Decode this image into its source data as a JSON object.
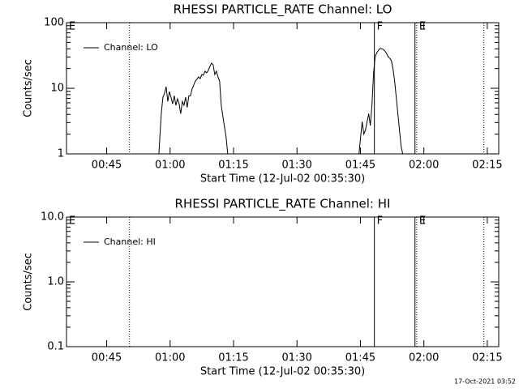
{
  "chart_data": [
    {
      "type": "line",
      "title": "RHESSI PARTICLE_RATE Channel: LO",
      "xlabel": "Start Time (12-Jul-02 00:35:30)",
      "ylabel": "Counts/sec",
      "xlim": [
        35.5,
        137.7
      ],
      "xticks": [
        {
          "value": 45,
          "label": "00:45"
        },
        {
          "value": 60,
          "label": "01:00"
        },
        {
          "value": 75,
          "label": "01:15"
        },
        {
          "value": 90,
          "label": "01:30"
        },
        {
          "value": 105,
          "label": "01:45"
        },
        {
          "value": 120,
          "label": "02:00"
        },
        {
          "value": 135,
          "label": "02:15"
        }
      ],
      "ylim": [
        1,
        100
      ],
      "yticks": [
        1,
        10,
        100
      ],
      "ylog": true,
      "color": "#000000",
      "series": [
        {
          "name": "Channel: LO",
          "color": "#000000",
          "x": [
            57.34,
            57.91,
            58.3,
            58.68,
            59.06,
            59.45,
            59.83,
            60.21,
            60.6,
            60.98,
            61.36,
            61.74,
            62.13,
            62.51,
            62.89,
            63.28,
            63.66,
            64.04,
            64.43,
            64.81,
            65.19,
            65.58,
            65.96,
            66.34,
            66.72,
            67.11,
            67.49,
            67.87,
            68.26,
            68.64,
            69.02,
            69.41,
            69.79,
            70.17,
            70.56,
            70.94,
            71.32,
            71.7,
            72.09,
            72.66,
            73.24,
            73.62,
            90,
            104.66,
            105.04,
            105.42,
            105.81,
            106.19,
            106.57,
            106.96,
            107.34,
            107.72,
            108.11,
            108.49,
            108.87,
            109.26,
            109.64,
            110.02,
            110.4,
            110.79,
            111.17,
            111.55,
            111.94,
            112.32,
            112.7,
            113.09,
            113.47,
            113.85,
            114.23,
            114.62,
            115.0
          ],
          "values": [
            1,
            4.1,
            7.3,
            8.4,
            10.6,
            6.3,
            8.9,
            7.3,
            5.8,
            7.7,
            5.5,
            6.9,
            5.8,
            4.1,
            6.3,
            5.5,
            7.3,
            5.1,
            7.7,
            7.7,
            9.7,
            11.2,
            12.9,
            13.7,
            14.9,
            14.0,
            16.2,
            15.8,
            18.2,
            17.2,
            18.7,
            21.5,
            24.1,
            22.9,
            16.2,
            18.2,
            14.9,
            12.9,
            5.5,
            3.1,
            1.8,
            1,
            null,
            1,
            1.8,
            3.1,
            2.0,
            2.3,
            3.1,
            4.1,
            2.7,
            5.5,
            17.2,
            30.3,
            34.9,
            38.0,
            40.3,
            40.3,
            39.1,
            36.9,
            34.1,
            30.3,
            28.6,
            26.3,
            19.8,
            12.9,
            7.3,
            4.1,
            2.3,
            1.3,
            1
          ]
        }
      ],
      "markers": [
        {
          "x": 35.5,
          "label": "E",
          "style": "none"
        },
        {
          "x": 50.4,
          "style": "dotted"
        },
        {
          "x": 108.3,
          "label": "F",
          "style": "solid"
        },
        {
          "x": 117.9,
          "style": "solid"
        },
        {
          "x": 118.3,
          "label": "E",
          "style": "dotted"
        },
        {
          "x": 134.2,
          "style": "dotted"
        }
      ]
    },
    {
      "type": "line",
      "title": "RHESSI PARTICLE_RATE Channel: HI",
      "xlabel": "Start Time (12-Jul-02 00:35:30)",
      "ylabel": "Counts/sec",
      "xlim": [
        35.5,
        137.7
      ],
      "xticks": [
        {
          "value": 45,
          "label": "00:45"
        },
        {
          "value": 60,
          "label": "01:00"
        },
        {
          "value": 75,
          "label": "01:15"
        },
        {
          "value": 90,
          "label": "01:30"
        },
        {
          "value": 105,
          "label": "01:45"
        },
        {
          "value": 120,
          "label": "02:00"
        },
        {
          "value": 135,
          "label": "02:15"
        }
      ],
      "ylim": [
        0.1,
        10
      ],
      "yticks": [
        0.1,
        {
          "value": 1,
          "label": "1.0"
        },
        {
          "value": 10,
          "label": "10.0"
        }
      ],
      "ylog": true,
      "color": "#000000",
      "series": [
        {
          "name": "Channel: HI",
          "color": "#000000",
          "x": [],
          "values": []
        }
      ],
      "markers": [
        {
          "x": 35.5,
          "label": "E",
          "style": "none"
        },
        {
          "x": 50.4,
          "style": "dotted"
        },
        {
          "x": 108.3,
          "label": "F",
          "style": "solid"
        },
        {
          "x": 117.9,
          "style": "solid"
        },
        {
          "x": 118.3,
          "label": "E",
          "style": "dotted"
        },
        {
          "x": 134.2,
          "style": "dotted"
        }
      ]
    }
  ],
  "footer": "17-Oct-2021 03:52"
}
